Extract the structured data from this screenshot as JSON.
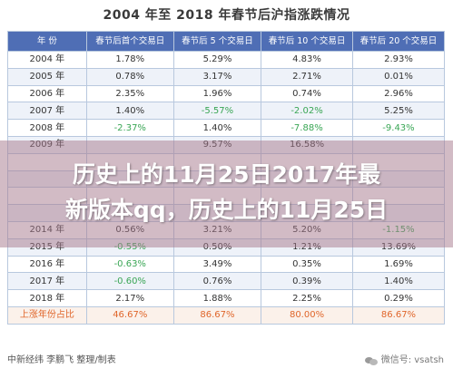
{
  "title": "2004 年至  2018 年春节后沪指涨跌情况",
  "headers": [
    "年  份",
    "春节后首个交易日",
    "春节后 5 个交易日",
    "春节后 10 个交易日",
    "春节后 20 个交易日"
  ],
  "rows": [
    {
      "year": "2004 年",
      "d1": "1.78%",
      "d5": "5.29%",
      "d10": "4.83%",
      "d20": "2.93%"
    },
    {
      "year": "2005 年",
      "d1": "0.78%",
      "d5": "3.17%",
      "d10": "2.71%",
      "d20": "0.01%"
    },
    {
      "year": "2006 年",
      "d1": "2.35%",
      "d5": "1.96%",
      "d10": "0.74%",
      "d20": "2.96%"
    },
    {
      "year": "2007 年",
      "d1": "1.40%",
      "d5": "-5.57%",
      "d10": "-2.02%",
      "d20": "5.25%"
    },
    {
      "year": "2008 年",
      "d1": "-2.37%",
      "d5": "1.40%",
      "d10": "-7.88%",
      "d20": "-9.43%"
    },
    {
      "year": "2009 年",
      "d1": "",
      "d5": "9.57%",
      "d10": "16.58%",
      "d20": ""
    },
    {
      "year": "",
      "d1": "",
      "d5": "",
      "d10": "",
      "d20": ""
    },
    {
      "year": "",
      "d1": "",
      "d5": "",
      "d10": "",
      "d20": ""
    },
    {
      "year": "",
      "d1": "",
      "d5": "",
      "d10": "",
      "d20": ""
    },
    {
      "year": "",
      "d1": "",
      "d5": "",
      "d10": "",
      "d20": ""
    },
    {
      "year": "2014 年",
      "d1": "0.56%",
      "d5": "3.21%",
      "d10": "5.20%",
      "d20": "-1.15%"
    },
    {
      "year": "2015 年",
      "d1": "-0.55%",
      "d5": "0.50%",
      "d10": "1.21%",
      "d20": "13.69%"
    },
    {
      "year": "2016 年",
      "d1": "-0.63%",
      "d5": "3.49%",
      "d10": "0.35%",
      "d20": "1.69%"
    },
    {
      "year": "2017 年",
      "d1": "-0.60%",
      "d5": "0.76%",
      "d10": "0.39%",
      "d20": "1.40%"
    },
    {
      "year": "2018 年",
      "d1": "2.17%",
      "d5": "1.88%",
      "d10": "2.25%",
      "d20": "0.29%"
    }
  ],
  "summary": {
    "label": "上涨年份占比",
    "d1": "46.67%",
    "d5": "86.67%",
    "d10": "80.00%",
    "d20": "86.67%"
  },
  "footer": "中新经纬  李鹏飞  整理/制表",
  "watermark": "微信号: vsatsh",
  "banner": {
    "line1": "历史上的11月25日2017年最",
    "line2": "新版本qq，历史上的11月25日"
  },
  "colors": {
    "header_bg": "#4f6eb5",
    "negative": "#3aa655",
    "summary": "#e0662b"
  }
}
